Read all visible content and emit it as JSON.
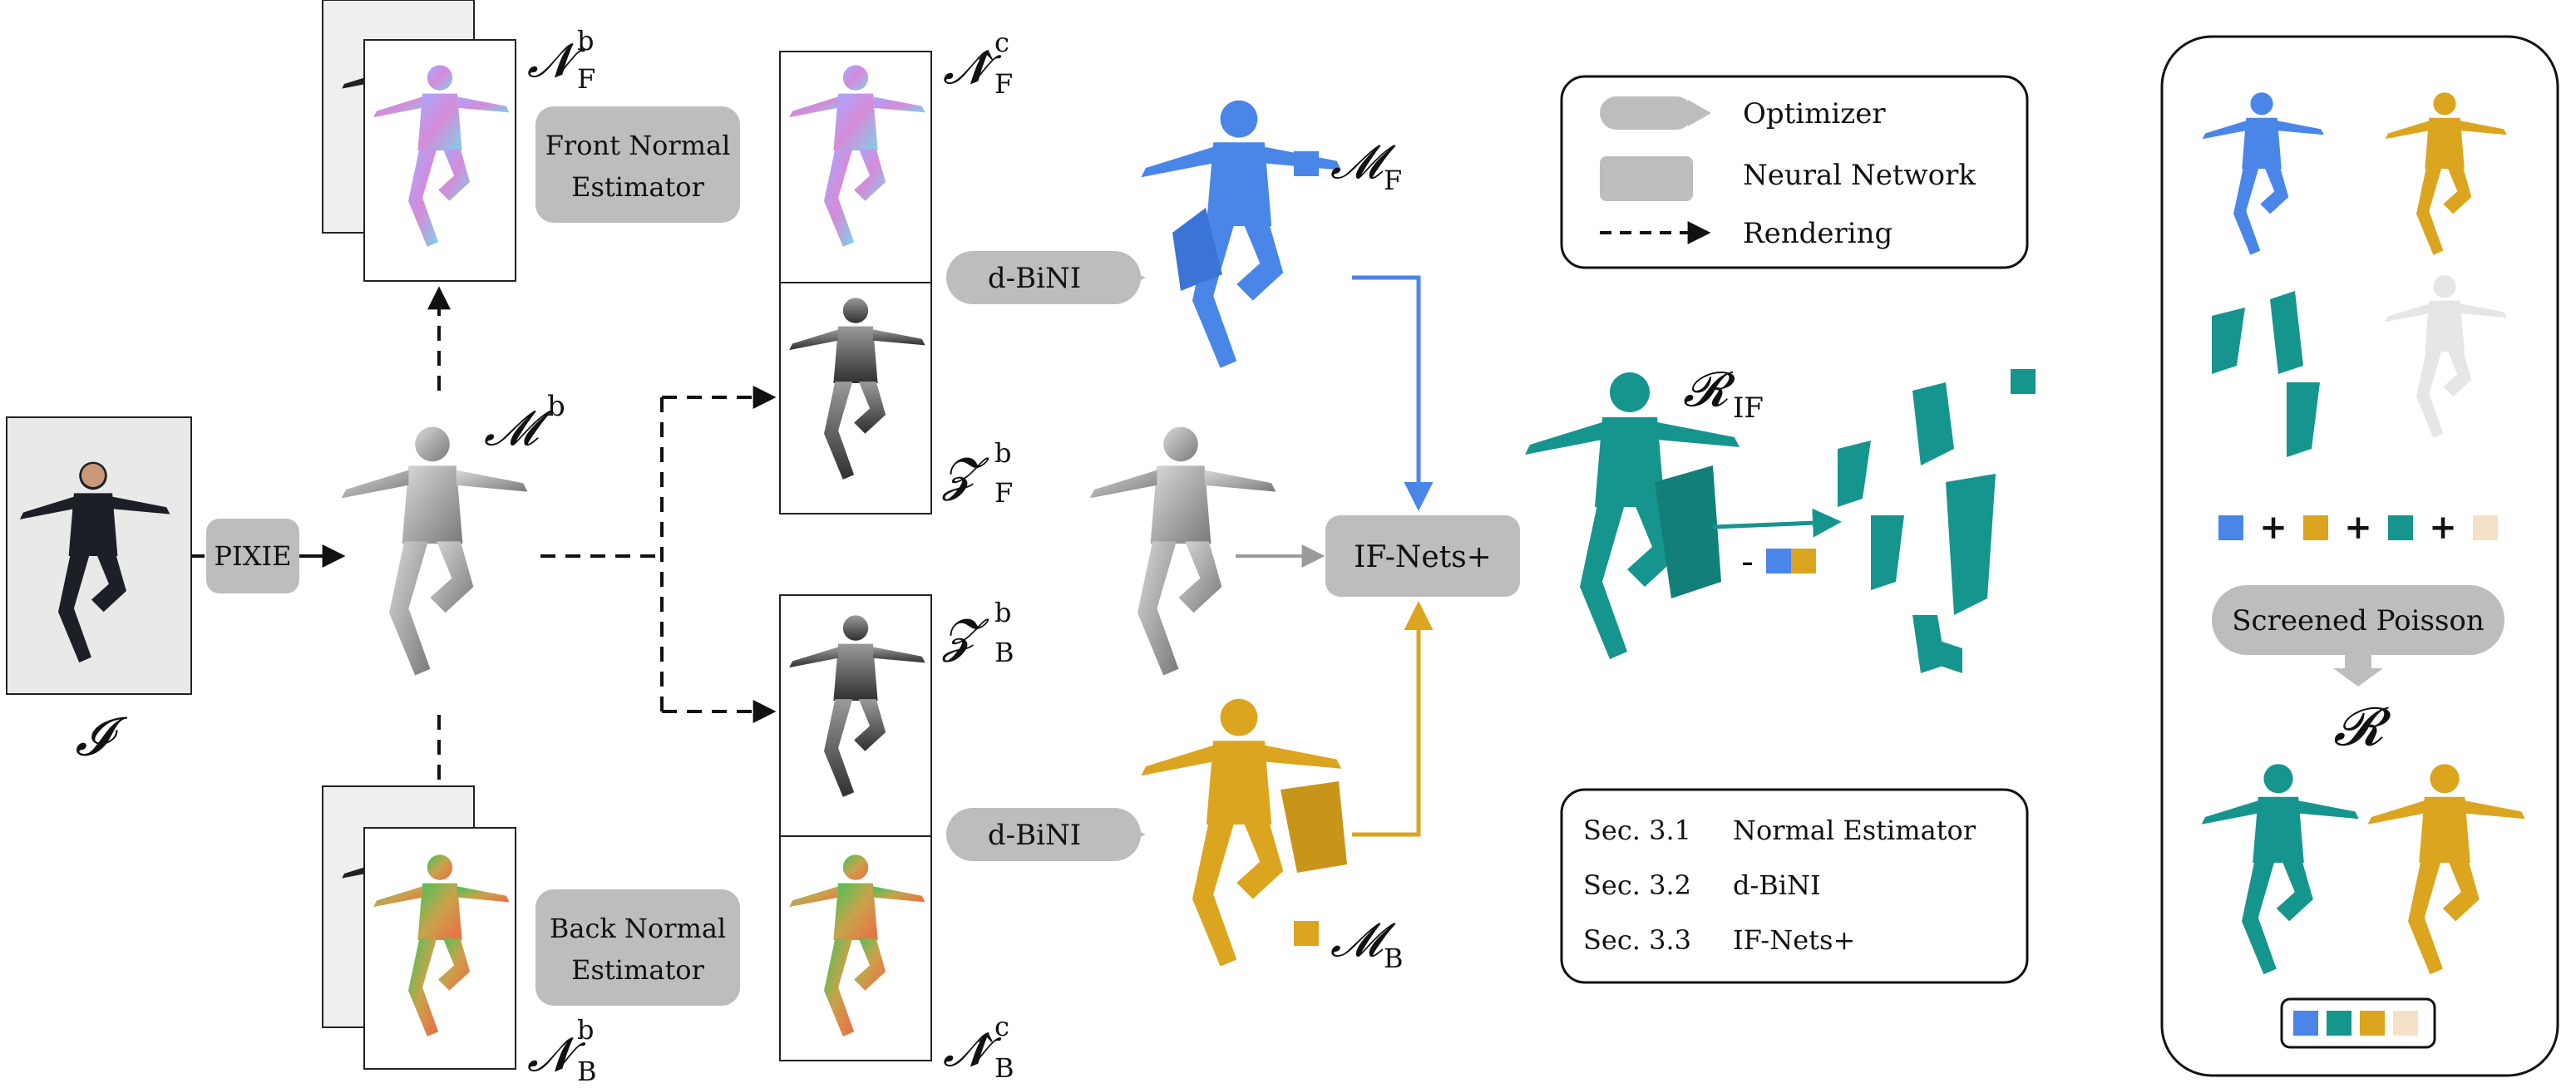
{
  "labels": {
    "input_image": "𝓘",
    "pixie": "PIXIE",
    "smpl_body": "𝓜",
    "smpl_sup": "b",
    "front_normal_est": [
      "Front Normal",
      "Estimator"
    ],
    "back_normal_est": [
      "Back Normal",
      "Estimator"
    ],
    "nf_b": "𝓝",
    "nf_b_sub": "F",
    "nf_b_sup": "b",
    "nb_b": "𝓝",
    "nb_b_sub": "B",
    "nb_b_sup": "b",
    "nf_c": "𝓝̂",
    "nf_c_sub": "F",
    "nf_c_sup": "c",
    "nb_c": "𝓝̂",
    "nb_c_sub": "B",
    "nb_c_sup": "c",
    "zf_b": "𝓩",
    "zf_b_sub": "F",
    "zf_b_sup": "b",
    "zb_b": "𝓩",
    "zb_b_sub": "B",
    "zb_b_sup": "b",
    "dbini_top": "d-BiNI",
    "dbini_bottom": "d-BiNI",
    "mf": "𝓜",
    "mf_sub": "F",
    "mb": "𝓜",
    "mb_sub": "B",
    "ifnets": "IF-Nets+",
    "rif": "𝓡",
    "rif_sub": "IF",
    "minus": "-",
    "screened_poisson": "Screened Poisson",
    "r_final": "𝓡",
    "plus": "+"
  },
  "legend": {
    "optimizer": "Optimizer",
    "neural_network": "Neural Network",
    "rendering": "Rendering"
  },
  "sections": [
    {
      "num": "Sec. 3.1",
      "name": "Normal Estimator"
    },
    {
      "num": "Sec. 3.2",
      "name": "d-BiNI"
    },
    {
      "num": "Sec. 3.3",
      "name": "IF-Nets+"
    }
  ],
  "colors": {
    "front_blue": "#4a86e8",
    "back_gold": "#dba520",
    "ifnet_teal": "#16958e",
    "skin_beige": "#f5e0c8",
    "gray_box": "#bdbdbd",
    "gray_body": "#9a9a9a"
  }
}
